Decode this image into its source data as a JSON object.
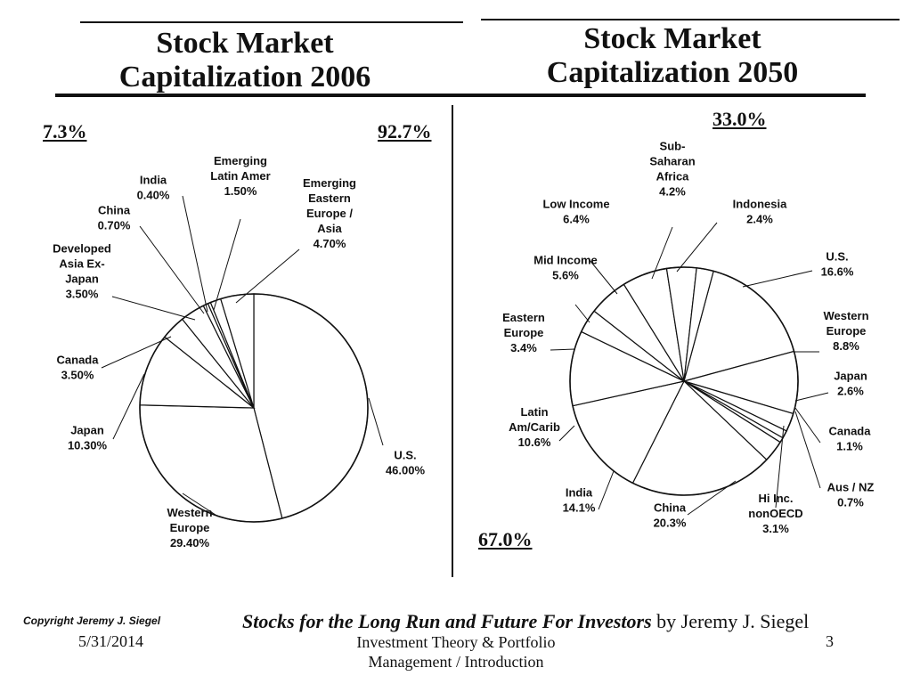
{
  "titles": {
    "left": [
      "Stock Market",
      "Capitalization 2006"
    ],
    "right": [
      "Stock Market",
      "Capitalization 2050"
    ]
  },
  "left_panel": {
    "top_left_pct": "7.3%",
    "top_right_pct": "92.7%"
  },
  "right_panel": {
    "top_pct": "33.0%",
    "bottom_pct": "67.0%"
  },
  "chart_data": [
    {
      "type": "pie",
      "title": "Stock Market Capitalization 2006",
      "slices": [
        {
          "label": [
            "U.S.",
            "46.00%"
          ],
          "value": 46.0
        },
        {
          "label": [
            "Western",
            "Europe",
            "29.40%"
          ],
          "value": 29.4
        },
        {
          "label": [
            "Japan",
            "10.30%"
          ],
          "value": 10.3
        },
        {
          "label": [
            "Canada",
            "3.50%"
          ],
          "value": 3.5
        },
        {
          "label": [
            "Developed",
            "Asia Ex-",
            "Japan",
            "3.50%"
          ],
          "value": 3.5
        },
        {
          "label": [
            "China",
            "0.70%"
          ],
          "value": 0.7
        },
        {
          "label": [
            "India",
            "0.40%"
          ],
          "value": 0.4
        },
        {
          "label": [
            "Emerging",
            "Latin Amer",
            "1.50%"
          ],
          "value": 1.5
        },
        {
          "label": [
            "Emerging",
            "Eastern",
            "Europe /",
            "Asia",
            "4.70%"
          ],
          "value": 4.7
        }
      ]
    },
    {
      "type": "pie",
      "title": "Stock Market Capitalization 2050",
      "slices": [
        {
          "label": [
            "U.S.",
            "16.6%"
          ],
          "value": 16.6
        },
        {
          "label": [
            "Western",
            "Europe",
            "8.8%"
          ],
          "value": 8.8
        },
        {
          "label": [
            "Japan",
            "2.6%"
          ],
          "value": 2.6
        },
        {
          "label": [
            "Canada",
            "1.1%"
          ],
          "value": 1.1
        },
        {
          "label": [
            "Aus / NZ",
            "0.7%"
          ],
          "value": 0.7
        },
        {
          "label": [
            "Hi Inc.",
            "nonOECD",
            "3.1%"
          ],
          "value": 3.1
        },
        {
          "label": [
            "China",
            "20.3%"
          ],
          "value": 20.3
        },
        {
          "label": [
            "India",
            "14.1%"
          ],
          "value": 14.1
        },
        {
          "label": [
            "Latin",
            "Am/Carib",
            "10.6%"
          ],
          "value": 10.6
        },
        {
          "label": [
            "Eastern",
            "Europe",
            "3.4%"
          ],
          "value": 3.4
        },
        {
          "label": [
            "Mid Income",
            "5.6%"
          ],
          "value": 5.6
        },
        {
          "label": [
            "Low Income",
            "6.4%"
          ],
          "value": 6.4
        },
        {
          "label": [
            "Sub-",
            "Saharan",
            "Africa",
            "4.2%"
          ],
          "value": 4.2
        },
        {
          "label": [
            "Indonesia",
            "2.4%"
          ],
          "value": 2.4
        }
      ]
    }
  ],
  "footer": {
    "copyright": "Copyright Jeremy J. Siegel",
    "book_title": "Stocks for the Long Run and Future For Investors",
    "book_author": "by Jeremy J. Siegel",
    "date": "5/31/2014",
    "course_line1": "Investment Theory & Portfolio",
    "course_line2": "Management / Introduction",
    "page_number": "3"
  }
}
